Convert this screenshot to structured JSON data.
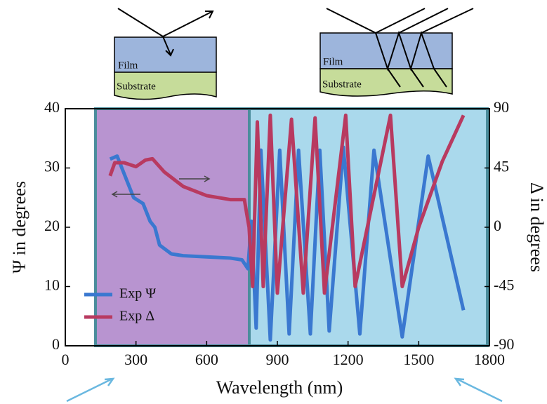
{
  "chart_data": {
    "type": "line",
    "x_label": "Wavelength (nm)",
    "y_label": "Ψ in degrees",
    "y2_label": "Δ in degrees",
    "xlim": [
      0,
      1800
    ],
    "xticks": [
      0,
      300,
      600,
      900,
      1200,
      1500,
      1800
    ],
    "ylim": [
      0,
      40
    ],
    "yticks": [
      0,
      10,
      20,
      30,
      40
    ],
    "y2lim": [
      -90,
      90
    ],
    "y2ticks": [
      -90,
      -45,
      0,
      45,
      90
    ],
    "legend": "lower left",
    "insets": [
      {
        "film": "Film",
        "substrate": "Substrate"
      },
      {
        "film": "Film",
        "substrate": "Substrate"
      }
    ],
    "series": [
      {
        "name": "Exp Ψ",
        "color": "#3a78d0",
        "x": [
          190,
          220,
          240,
          260,
          290,
          330,
          360,
          380,
          400,
          450,
          500,
          600,
          700,
          750,
          775,
          790,
          810,
          830,
          870,
          910,
          950,
          990,
          1040,
          1080,
          1120,
          1180,
          1250,
          1310,
          1430,
          1540,
          1690
        ],
        "values": [
          31.5,
          32,
          30,
          28,
          25,
          24,
          21,
          20,
          17,
          15.5,
          15.2,
          15,
          14.8,
          14.5,
          13,
          21,
          3,
          33,
          1,
          33,
          2,
          33,
          2,
          33,
          2.5,
          33.5,
          2,
          33,
          1.5,
          32,
          6
        ]
      },
      {
        "name": "Exp Δ",
        "color": "#b83a60",
        "axis": "y2",
        "x": [
          190,
          210,
          250,
          300,
          340,
          370,
          420,
          500,
          600,
          700,
          760,
          775,
          780,
          795,
          815,
          840,
          870,
          900,
          960,
          1010,
          1060,
          1100,
          1190,
          1230,
          1380,
          1430,
          1500,
          1600,
          1690
        ],
        "values": [
          39,
          49,
          49,
          46,
          51,
          52,
          42,
          31,
          24,
          21,
          21,
          5,
          0,
          -45,
          80,
          -45,
          85,
          -50,
          82,
          -50,
          83,
          -50,
          85,
          -45,
          85,
          -45,
          0,
          50,
          85
        ]
      }
    ]
  }
}
